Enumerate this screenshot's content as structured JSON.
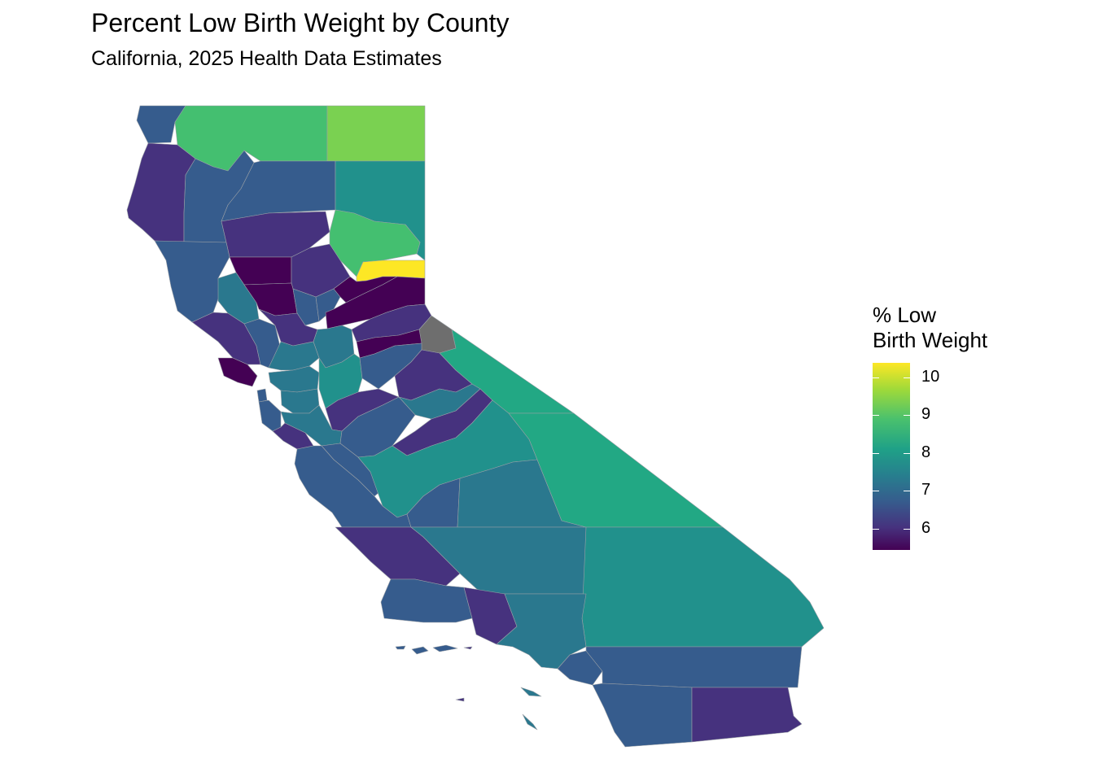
{
  "title": "Percent Low Birth Weight by County",
  "subtitle": "California, 2025 Health Data Estimates",
  "legend": {
    "title_line1": "% Low",
    "title_line2": "Birth Weight",
    "ticks": [
      "10",
      "9",
      "8",
      "7",
      "6"
    ]
  },
  "colors": {
    "c5": "#440154",
    "c6": "#46327e",
    "c7": "#365c8d",
    "c7b": "#2a788e",
    "c8": "#21918c",
    "c8b": "#22a884",
    "c9": "#44bf70",
    "c95": "#7ad151",
    "c10": "#fde725",
    "na": "#6e6e6e"
  }
}
